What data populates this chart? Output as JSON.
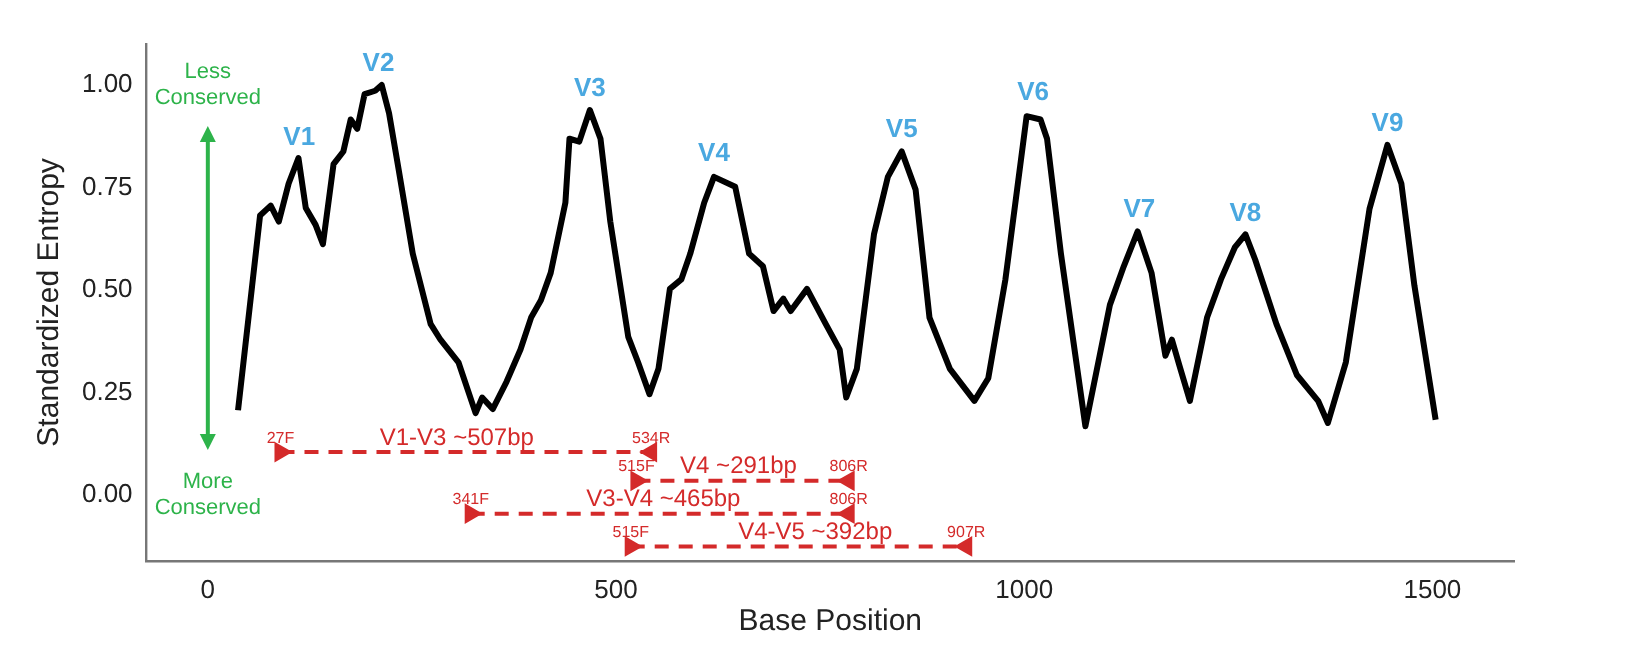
{
  "chart_data": {
    "type": "line",
    "xlabel": "Base Position",
    "ylabel": "Standardized Entropy",
    "xlim": [
      -75,
      1600
    ],
    "ylim": [
      -0.16,
      1.1
    ],
    "xticks": [
      0,
      500,
      1000,
      1500
    ],
    "yticks": [
      {
        "value": 0,
        "label": "0.00"
      },
      0.25,
      {
        "value": 0.5,
        "label": "0.50"
      },
      0.75,
      {
        "value": 1,
        "label": "1.00"
      }
    ],
    "grid": false,
    "legend": false,
    "marker": "none",
    "line_style": "solid",
    "series": [
      {
        "type": "line",
        "color": "#000000",
        "x": [
          37,
          64,
          77,
          87,
          99,
          111,
          120,
          132,
          141,
          154,
          166,
          175,
          183,
          192,
          205,
          213,
          222,
          234,
          251,
          273,
          285,
          307,
          328,
          336,
          349,
          366,
          383,
          396,
          408,
          420,
          438,
          443,
          455,
          468,
          481,
          493,
          515,
          527,
          541,
          552,
          566,
          580,
          591,
          608,
          620,
          646,
          663,
          680,
          693,
          705,
          714,
          734,
          757,
          774,
          782,
          795,
          816,
          833,
          850,
          867,
          884,
          909,
          939,
          956,
          977,
          1003,
          1020,
          1028,
          1045,
          1075,
          1105,
          1122,
          1139,
          1156,
          1173,
          1181,
          1190,
          1203,
          1224,
          1241,
          1258,
          1271,
          1283,
          1309,
          1334,
          1360,
          1372,
          1394,
          1423,
          1445,
          1462,
          1478,
          1504
        ],
        "values": [
          0.207,
          0.682,
          0.706,
          0.667,
          0.76,
          0.822,
          0.7,
          0.659,
          0.612,
          0.807,
          0.838,
          0.916,
          0.893,
          0.978,
          0.986,
          1.0,
          0.931,
          0.791,
          0.589,
          0.417,
          0.379,
          0.324,
          0.2,
          0.238,
          0.21,
          0.277,
          0.355,
          0.433,
          0.475,
          0.542,
          0.713,
          0.869,
          0.862,
          0.939,
          0.869,
          0.667,
          0.386,
          0.324,
          0.246,
          0.308,
          0.503,
          0.526,
          0.589,
          0.713,
          0.776,
          0.752,
          0.589,
          0.558,
          0.449,
          0.479,
          0.449,
          0.503,
          0.417,
          0.355,
          0.238,
          0.308,
          0.636,
          0.776,
          0.838,
          0.745,
          0.433,
          0.308,
          0.23,
          0.285,
          0.526,
          0.924,
          0.916,
          0.869,
          0.589,
          0.168,
          0.464,
          0.558,
          0.643,
          0.542,
          0.34,
          0.379,
          0.317,
          0.23,
          0.433,
          0.526,
          0.604,
          0.636,
          0.574,
          0.417,
          0.293,
          0.23,
          0.176,
          0.324,
          0.698,
          0.854,
          0.76,
          0.511,
          0.184
        ]
      },
      {
        "type": "line",
        "color": "#d42a2a",
        "line_style": "dashed",
        "marker": "triangle",
        "x": [
          89,
          543
        ],
        "values": [
          0.105,
          0.105
        ]
      },
      {
        "type": "line",
        "color": "#d42a2a",
        "line_style": "dashed",
        "marker": "triangle",
        "x": [
          525,
          785
        ],
        "values": [
          0.035,
          0.035
        ]
      },
      {
        "type": "line",
        "color": "#d42a2a",
        "line_style": "dashed",
        "marker": "triangle",
        "x": [
          322,
          785
        ],
        "values": [
          -0.045,
          -0.045
        ]
      },
      {
        "type": "line",
        "color": "#d42a2a",
        "line_style": "dashed",
        "marker": "triangle",
        "x": [
          518,
          929
        ],
        "values": [
          -0.125,
          -0.125
        ]
      }
    ],
    "annotations": [
      "Less Conserved",
      "More Conserved",
      {
        "text": "V1",
        "x": 112,
        "y": 0.82
      },
      {
        "text": "V2",
        "x": 209,
        "y": 1.0
      },
      {
        "text": "V3",
        "x": 468,
        "y": 0.94
      },
      {
        "text": "V4",
        "x": 620,
        "y": 0.78
      },
      {
        "text": "V5",
        "x": 850,
        "y": 0.84
      },
      {
        "text": "V6",
        "x": 1011,
        "y": 0.93
      },
      {
        "text": "V7",
        "x": 1141,
        "y": 0.645
      },
      {
        "text": "V8",
        "x": 1271,
        "y": 0.635
      },
      {
        "text": "V9",
        "x": 1445,
        "y": 0.855
      },
      {
        "text": "27F",
        "x": 89,
        "y": 0.105
      },
      {
        "text": "534R",
        "x": 543,
        "y": 0.105
      },
      {
        "text": "V1-V3 ~507bp",
        "x": 305,
        "y": 0.105
      },
      {
        "text": "515F",
        "x": 525,
        "y": 0.035
      },
      {
        "text": "806R",
        "x": 785,
        "y": 0.035
      },
      {
        "text": "V4 ~291bp",
        "x": 650,
        "y": 0.035
      },
      {
        "text": "341F",
        "x": 322,
        "y": -0.045
      },
      {
        "text": "806R",
        "x": 785,
        "y": -0.045
      },
      {
        "text": "V3-V4 ~465bp",
        "x": 558,
        "y": -0.045
      },
      {
        "text": "515F",
        "x": 518,
        "y": -0.125
      },
      {
        "text": "907R",
        "x": 929,
        "y": -0.125
      },
      {
        "text": "V4-V5 ~392bp",
        "x": 744,
        "y": -0.125
      }
    ]
  }
}
